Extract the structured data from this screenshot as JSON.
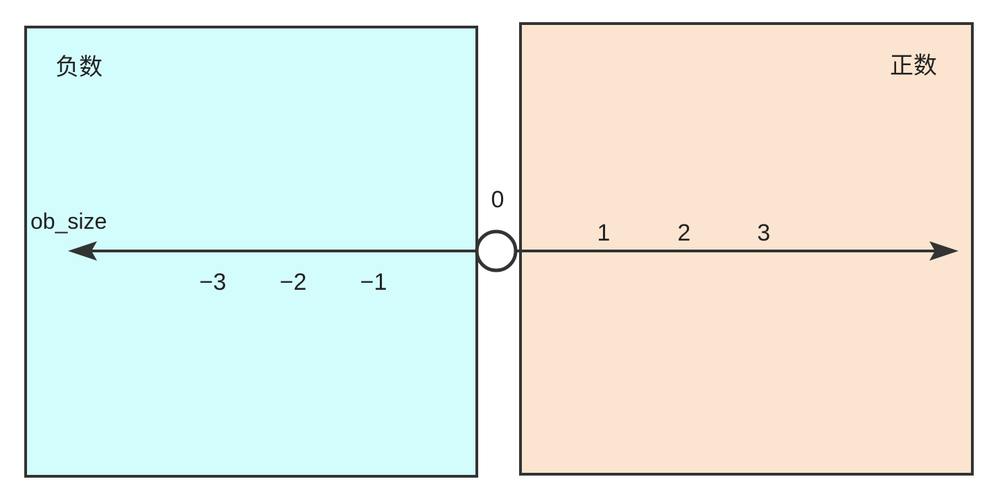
{
  "panels": {
    "negative": {
      "label": "负数",
      "fill": "#d3fcfd"
    },
    "positive": {
      "label": "正数",
      "fill": "#fbe5d0"
    }
  },
  "stroke_color": "#333333",
  "axis": {
    "label": "ob_size",
    "origin_label": "0",
    "negative_ticks": [
      "−3",
      "−2",
      "−1"
    ],
    "positive_ticks": [
      "1",
      "2",
      "3"
    ]
  }
}
